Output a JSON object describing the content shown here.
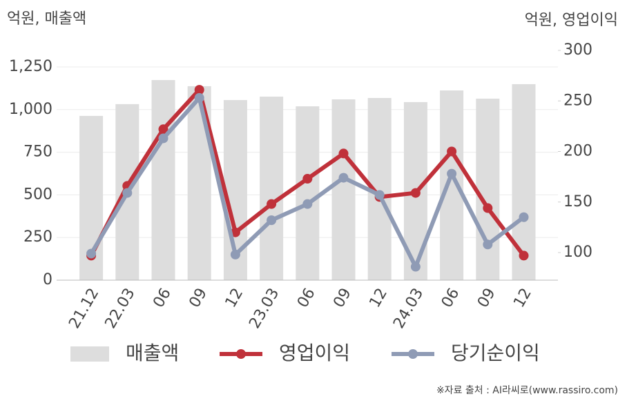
{
  "chart_data": {
    "type": "bar",
    "y_axis_label": "억원, 매출액",
    "y2_axis_label": "억원, 영업이익",
    "source": "※자료 출처 : AI라씨로(www.rassiro.com)",
    "categories": [
      "21.12",
      "22.03",
      "06",
      "09",
      "12",
      "23.03",
      "06",
      "09",
      "12",
      "24.03",
      "06",
      "09",
      "12"
    ],
    "series": [
      {
        "name": "매출액",
        "type": "bar",
        "axis": "y",
        "color": "#dddddd",
        "values": [
          963,
          1032,
          1173,
          1137,
          1056,
          1076,
          1019,
          1060,
          1068,
          1044,
          1112,
          1064,
          1149
        ]
      },
      {
        "name": "영업이익",
        "type": "line",
        "axis": "y2",
        "color": "#c0313a",
        "values": [
          97,
          166,
          222,
          261,
          120,
          148,
          173,
          198,
          155,
          159,
          200,
          144,
          97
        ]
      },
      {
        "name": "당기순이익",
        "type": "line",
        "axis": "y2",
        "color": "#8f9bb5",
        "values": [
          99,
          159,
          213,
          253,
          98,
          132,
          148,
          174,
          157,
          86,
          178,
          108,
          135
        ]
      }
    ],
    "ylim": [
      0,
      1347
    ],
    "yticks": [
      0,
      250,
      500,
      750,
      {
        "value": 1000,
        "label": "1,000"
      },
      {
        "value": 1250,
        "label": "1,250"
      }
    ],
    "y2lim": [
      72.7,
      300
    ],
    "y2ticks": [
      100,
      150,
      200,
      250,
      300
    ],
    "grid": true
  }
}
